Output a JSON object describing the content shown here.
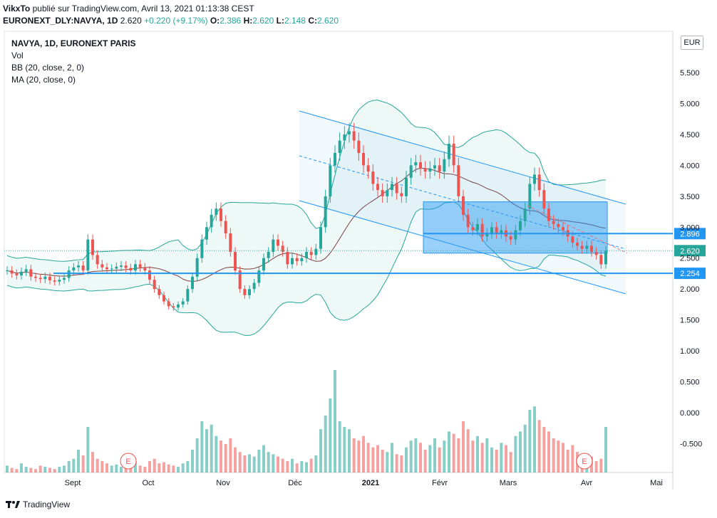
{
  "header": {
    "author": "VikxTo",
    "published": "publié sur TradingView.com, Avril 13, 2021 01:13:38 CEST",
    "symbol": "EURONEXT_DLY:NAVYA, 1D",
    "price": "2.620",
    "change": "+0.220 (+9.17%)",
    "o_label": "O:",
    "o_value": "2.386",
    "h_label": "H:",
    "h_value": "2.620",
    "l_label": "L:",
    "l_value": "2.148",
    "c_label": "C:",
    "c_value": "2.620"
  },
  "legend": {
    "title": "NAVYA, 1D, EURONEXT PARIS",
    "vol": "Vol",
    "bb": "BB (20, close, 2, 0)",
    "ma": "MA (20, close, 0)"
  },
  "currency": "EUR",
  "footer": {
    "brand": "TradingView"
  },
  "colors": {
    "up": "#26a69a",
    "down": "#ef5350",
    "bb": "#26a69a",
    "ma": "#7b3f3f",
    "channel": "#2196f3",
    "box": "#2196f3",
    "hline": "#2196f3",
    "trend": "#e57373"
  },
  "chart_data": {
    "type": "candlestick",
    "x_labels": [
      "Sept",
      "Oct",
      "Nov",
      "Déc",
      "2021",
      "Févr",
      "Mars",
      "Avr",
      "Mai"
    ],
    "y_ticks": [
      "5.500",
      "5.000",
      "4.500",
      "4.000",
      "3.500",
      "3.000",
      "2.500",
      "2.000",
      "1.500",
      "1.000",
      "0.500",
      "0.000",
      "-0.500"
    ],
    "price_tags": [
      {
        "label": "2.896",
        "value": 2.896
      },
      {
        "label": "2.620",
        "value": 2.62
      },
      {
        "label": "2.254",
        "value": 2.254
      }
    ],
    "earnings_markers": [
      "E",
      "E"
    ],
    "closes": [
      2.3,
      2.25,
      2.22,
      2.28,
      2.32,
      2.2,
      2.18,
      2.16,
      2.2,
      2.14,
      2.12,
      2.15,
      2.18,
      2.3,
      2.35,
      2.38,
      2.3,
      2.8,
      2.55,
      2.4,
      2.35,
      2.32,
      2.33,
      2.36,
      2.38,
      2.34,
      2.3,
      2.4,
      2.35,
      2.3,
      2.15,
      2.0,
      1.9,
      1.8,
      1.72,
      1.7,
      1.75,
      1.8,
      2.0,
      2.2,
      2.5,
      2.8,
      3.0,
      3.2,
      3.3,
      3.1,
      2.9,
      2.6,
      2.3,
      2.0,
      1.9,
      2.0,
      2.1,
      2.3,
      2.5,
      2.6,
      2.8,
      2.7,
      2.6,
      2.4,
      2.5,
      2.45,
      2.5,
      2.6,
      2.55,
      2.65,
      3.0,
      3.5,
      4.0,
      4.2,
      4.4,
      4.5,
      4.55,
      4.4,
      4.2,
      4.0,
      3.9,
      3.7,
      3.6,
      3.5,
      3.6,
      3.7,
      3.55,
      3.5,
      3.8,
      4.0,
      4.05,
      3.95,
      3.9,
      3.95,
      4.0,
      3.9,
      4.1,
      4.35,
      4.0,
      3.5,
      3.2,
      3.0,
      2.95,
      3.05,
      2.85,
      2.9,
      3.0,
      2.9,
      2.95,
      2.85,
      2.8,
      2.95,
      3.1,
      3.3,
      3.7,
      3.85,
      3.6,
      3.3,
      3.1,
      3.05,
      3.0,
      2.95,
      2.85,
      2.75,
      2.7,
      2.65,
      2.7,
      2.6,
      2.55,
      2.4,
      2.62
    ],
    "volumes": [
      0.06,
      0.04,
      0.03,
      0.08,
      0.05,
      0.04,
      0.03,
      0.06,
      0.05,
      0.04,
      0.03,
      0.05,
      0.06,
      0.1,
      0.12,
      0.2,
      0.15,
      0.4,
      0.18,
      0.12,
      0.1,
      0.08,
      0.06,
      0.07,
      0.05,
      0.06,
      0.08,
      0.1,
      0.06,
      0.05,
      0.1,
      0.12,
      0.08,
      0.09,
      0.07,
      0.06,
      0.05,
      0.08,
      0.1,
      0.2,
      0.3,
      0.45,
      0.38,
      0.42,
      0.32,
      0.28,
      0.25,
      0.3,
      0.22,
      0.18,
      0.15,
      0.16,
      0.14,
      0.2,
      0.24,
      0.18,
      0.16,
      0.14,
      0.12,
      0.1,
      0.12,
      0.08,
      0.1,
      0.09,
      0.12,
      0.15,
      0.38,
      0.5,
      0.65,
      0.9,
      0.45,
      0.4,
      0.38,
      0.3,
      0.28,
      0.32,
      0.26,
      0.22,
      0.24,
      0.2,
      0.18,
      0.26,
      0.16,
      0.15,
      0.22,
      0.28,
      0.3,
      0.26,
      0.2,
      0.24,
      0.3,
      0.22,
      0.28,
      0.36,
      0.34,
      0.3,
      0.45,
      0.38,
      0.28,
      0.32,
      0.26,
      0.3,
      0.22,
      0.2,
      0.26,
      0.24,
      0.18,
      0.32,
      0.36,
      0.42,
      0.55,
      0.58,
      0.46,
      0.4,
      0.36,
      0.3,
      0.28,
      0.26,
      0.2,
      0.24,
      0.18,
      0.16,
      0.12,
      0.14,
      0.1,
      0.12,
      0.4
    ]
  }
}
